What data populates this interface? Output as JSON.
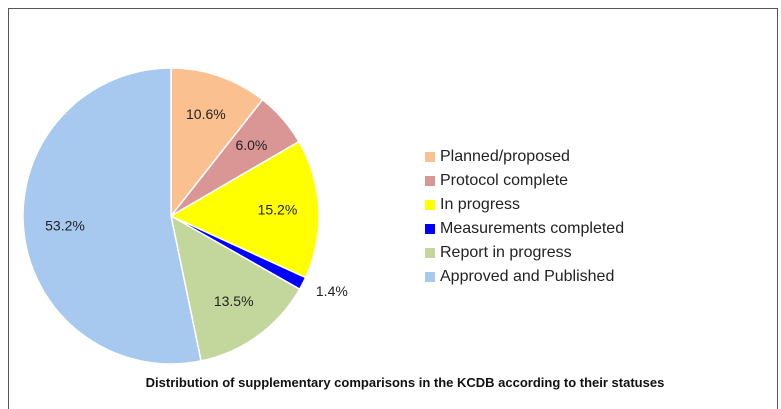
{
  "chart_data": {
    "type": "pie",
    "title": "Distribution of supplementary comparisons in the KCDB according to their statuses",
    "categories": [
      "Planned/proposed",
      "Protocol complete",
      "In progress",
      "Measurements completed",
      "Report in progress",
      "Approved and Published"
    ],
    "values": [
      10.6,
      6.0,
      15.2,
      1.4,
      13.5,
      53.2
    ],
    "value_labels": [
      "10.6%",
      "6.0%",
      "15.2%",
      "1.4%",
      "13.5%",
      "53.2%"
    ],
    "colors": [
      "#fac090",
      "#d99694",
      "#ffff00",
      "#0000ff",
      "#c3d69b",
      "#a7c9ef"
    ],
    "legend": "right"
  }
}
